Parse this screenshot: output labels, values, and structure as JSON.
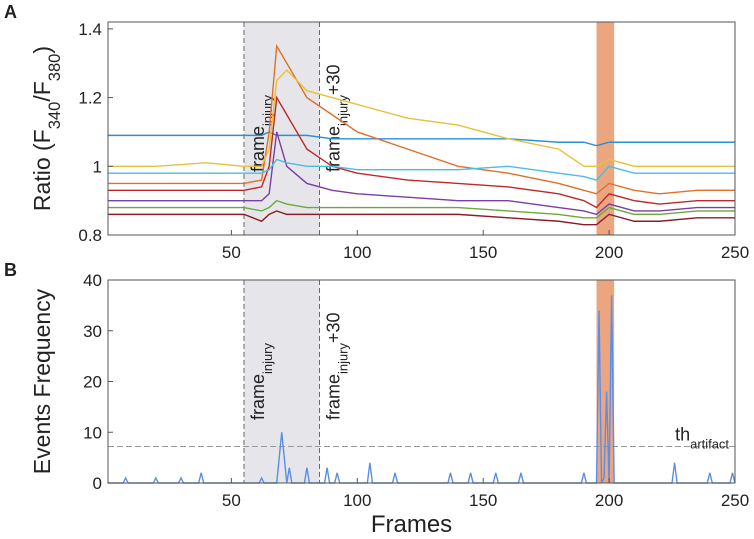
{
  "chart_data": [
    {
      "type": "line",
      "panel": "A",
      "ylabel": [
        {
          "text": "Ratio (F"
        },
        {
          "sub": "340"
        },
        {
          "text": "/F"
        },
        {
          "sub": "380"
        },
        {
          "text": ")"
        }
      ],
      "xlim": [
        1,
        250
      ],
      "ylim": [
        0.8,
        1.42
      ],
      "xticks": [
        50,
        100,
        150,
        200,
        250
      ],
      "yticks": [
        {
          "value": 0.8,
          "label": "0.8"
        },
        {
          "value": 1.0,
          "label": "1"
        },
        {
          "value": 1.2,
          "label": "1.2"
        },
        {
          "value": 1.4,
          "label": "1.4"
        }
      ],
      "shaded": [
        55,
        85
      ],
      "shaded_color": "#e6e6ea",
      "band": [
        195,
        202
      ],
      "band_color": "#eca67f",
      "annotations": [
        {
          "x": 55,
          "parts": [
            {
              "text": "frame"
            },
            {
              "sub": "injury"
            }
          ]
        },
        {
          "x": 85,
          "parts": [
            {
              "text": "frame"
            },
            {
              "sub": "injury"
            },
            {
              "text": "+30"
            }
          ]
        }
      ],
      "x": [
        1,
        20,
        40,
        55,
        62,
        65,
        68,
        72,
        80,
        90,
        100,
        120,
        140,
        160,
        180,
        190,
        195,
        200,
        210,
        220,
        235,
        250
      ],
      "series": [
        {
          "color": "#2b8fd6",
          "values": [
            1.09,
            1.09,
            1.09,
            1.09,
            1.09,
            1.1,
            1.09,
            1.09,
            1.09,
            1.08,
            1.08,
            1.08,
            1.08,
            1.08,
            1.07,
            1.07,
            1.06,
            1.07,
            1.07,
            1.07,
            1.07,
            1.07
          ]
        },
        {
          "color": "#e0702a",
          "values": [
            0.95,
            0.95,
            0.95,
            0.95,
            0.96,
            1.1,
            1.35,
            1.3,
            1.2,
            1.15,
            1.1,
            1.05,
            1.0,
            0.98,
            0.95,
            0.93,
            0.92,
            0.95,
            0.93,
            0.92,
            0.93,
            0.93
          ]
        },
        {
          "color": "#e8c03a",
          "values": [
            1.0,
            1.0,
            1.01,
            1.0,
            1.0,
            1.05,
            1.25,
            1.28,
            1.22,
            1.2,
            1.18,
            1.14,
            1.12,
            1.08,
            1.05,
            1.0,
            1.0,
            1.02,
            1.0,
            1.0,
            1.0,
            1.0
          ]
        },
        {
          "color": "#c0282a",
          "values": [
            0.93,
            0.93,
            0.93,
            0.93,
            0.94,
            1.0,
            1.2,
            1.15,
            1.05,
            1.0,
            0.98,
            0.96,
            0.95,
            0.94,
            0.92,
            0.9,
            0.88,
            0.92,
            0.9,
            0.89,
            0.9,
            0.9
          ]
        },
        {
          "color": "#7a3fa0",
          "values": [
            0.9,
            0.9,
            0.9,
            0.9,
            0.9,
            0.92,
            1.1,
            1.0,
            0.95,
            0.93,
            0.92,
            0.91,
            0.9,
            0.9,
            0.88,
            0.87,
            0.86,
            0.89,
            0.87,
            0.87,
            0.88,
            0.88
          ]
        },
        {
          "color": "#6ca83a",
          "values": [
            0.88,
            0.88,
            0.88,
            0.88,
            0.87,
            0.88,
            0.9,
            0.89,
            0.88,
            0.88,
            0.88,
            0.88,
            0.88,
            0.87,
            0.86,
            0.85,
            0.85,
            0.88,
            0.86,
            0.86,
            0.87,
            0.87
          ]
        },
        {
          "color": "#4bbde0",
          "values": [
            0.98,
            0.98,
            0.98,
            0.98,
            0.98,
            0.99,
            1.02,
            1.01,
            1.0,
            1.0,
            0.99,
            0.99,
            0.99,
            1.0,
            0.98,
            0.97,
            0.96,
            1.0,
            0.98,
            0.98,
            0.98,
            0.98
          ]
        },
        {
          "color": "#8a1b2a",
          "values": [
            0.86,
            0.86,
            0.86,
            0.86,
            0.84,
            0.86,
            0.87,
            0.86,
            0.86,
            0.86,
            0.86,
            0.86,
            0.86,
            0.85,
            0.84,
            0.83,
            0.83,
            0.86,
            0.84,
            0.84,
            0.85,
            0.85
          ]
        }
      ]
    },
    {
      "type": "line",
      "panel": "B",
      "ylabel": [
        {
          "text": "Events Frequency"
        }
      ],
      "xlabel": "Frames",
      "xlim": [
        1,
        250
      ],
      "ylim": [
        0,
        40
      ],
      "xticks": [
        50,
        100,
        150,
        200,
        250
      ],
      "yticks": [
        0,
        10,
        20,
        30,
        40
      ],
      "shaded": [
        55,
        85
      ],
      "shaded_color": "#e6e6ea",
      "band": [
        195,
        202
      ],
      "band_color": "#eca67f",
      "threshold": 7.2,
      "threshold_label": [
        {
          "text": "th"
        },
        {
          "sub": "artifact"
        }
      ],
      "annotations": [
        {
          "x": 55,
          "parts": [
            {
              "text": "frame"
            },
            {
              "sub": "injury"
            }
          ]
        },
        {
          "x": 85,
          "parts": [
            {
              "text": "frame"
            },
            {
              "sub": "injury"
            },
            {
              "text": "+30"
            }
          ]
        }
      ],
      "x": [
        1,
        7,
        8,
        9,
        19,
        20,
        21,
        29,
        30,
        31,
        37,
        38,
        39,
        61,
        62,
        63,
        68,
        70,
        72,
        73,
        74,
        79,
        80,
        81,
        87,
        88,
        89,
        91,
        92,
        93,
        104,
        105,
        106,
        114,
        115,
        116,
        136,
        137,
        138,
        144,
        145,
        146,
        154,
        155,
        156,
        164,
        165,
        166,
        189,
        190,
        191,
        195,
        196,
        197,
        198,
        199,
        200,
        201,
        202,
        225,
        226,
        227,
        239,
        240,
        241,
        248,
        249,
        250
      ],
      "series": [
        {
          "color": "#5b8ee6",
          "values": [
            0,
            0,
            1,
            0,
            0,
            1,
            0,
            0,
            1,
            0,
            0,
            2,
            0,
            0,
            1,
            0,
            0,
            10,
            0,
            3,
            0,
            0,
            3,
            0,
            0,
            3,
            0,
            0,
            2,
            0,
            0,
            4,
            0,
            0,
            2,
            0,
            0,
            2,
            0,
            0,
            2,
            0,
            0,
            2,
            0,
            0,
            2,
            0,
            0,
            2,
            0,
            0,
            34,
            0,
            1,
            18,
            0,
            37,
            0,
            0,
            4,
            0,
            0,
            2,
            0,
            0,
            2,
            0
          ]
        }
      ]
    }
  ]
}
